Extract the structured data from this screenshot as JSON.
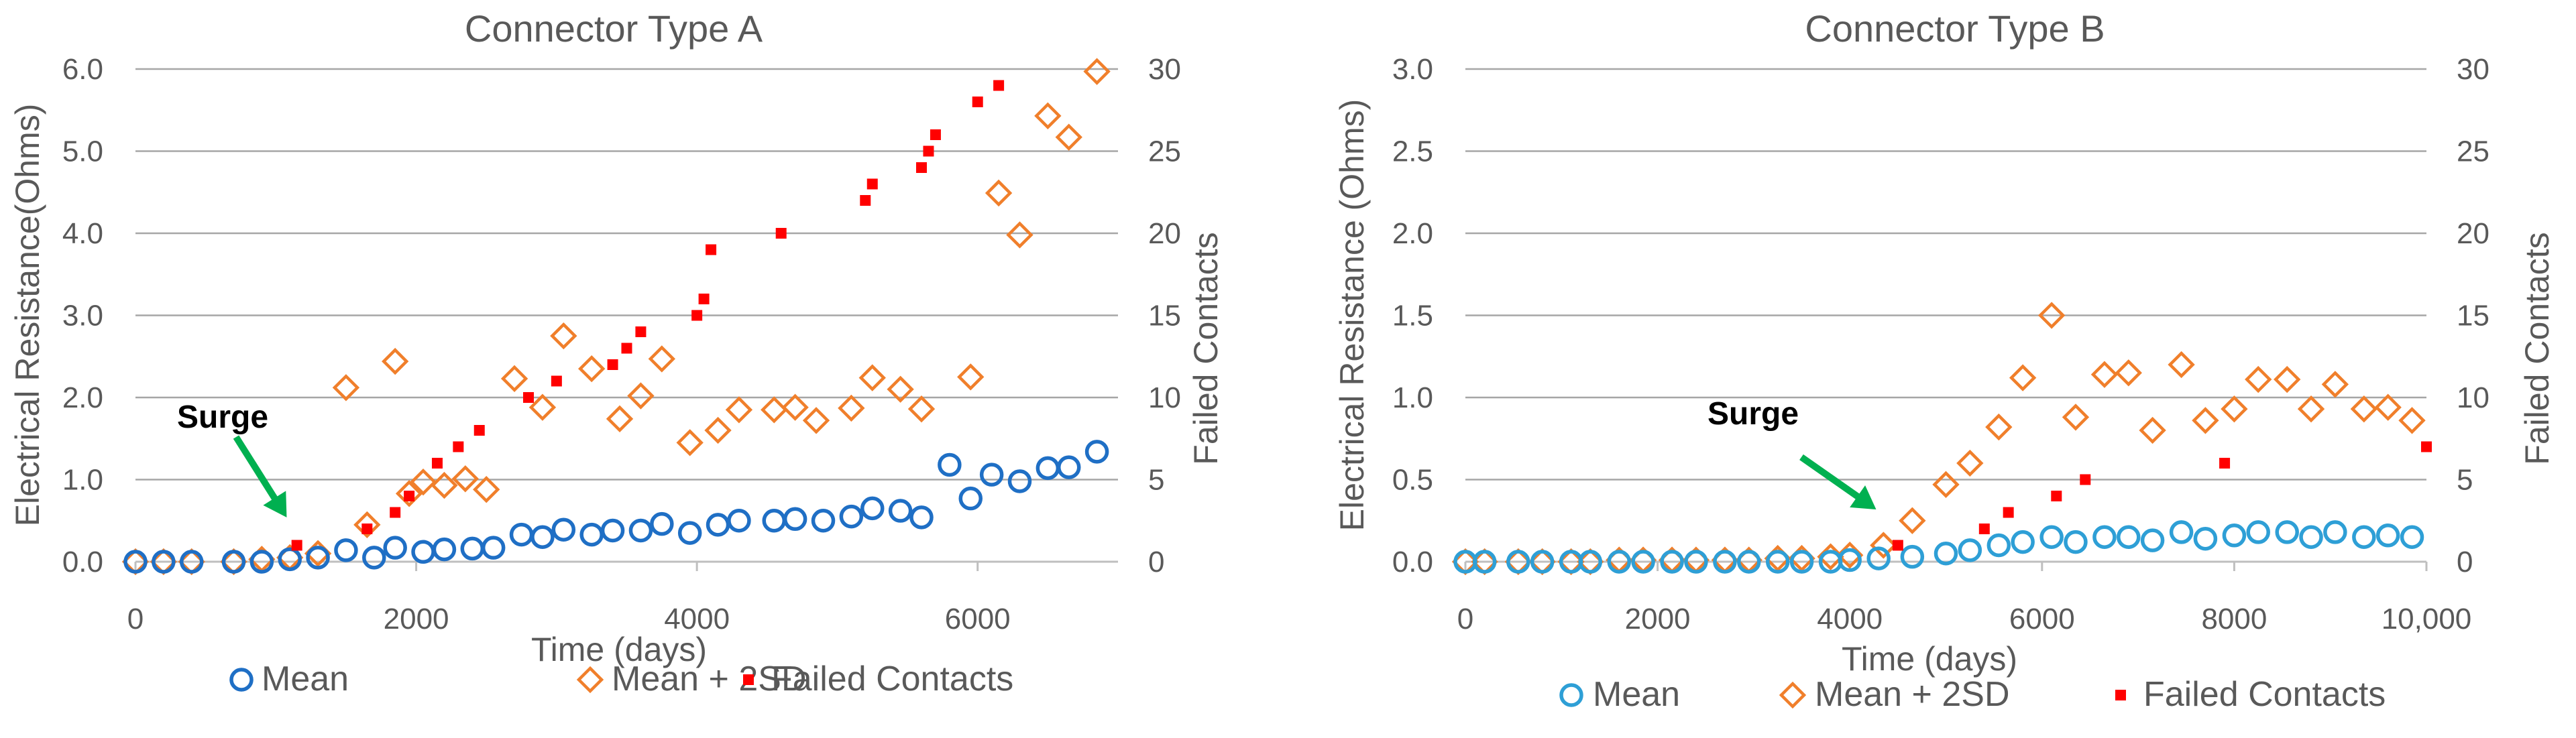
{
  "colors": {
    "mean_a": "#1F6FC5",
    "mean_b": "#2E9FD6",
    "mean_2sd": "#F07F2B",
    "failed": "#FF0000",
    "arrow": "#00B050",
    "grid": "#A6A6A6",
    "axis": "#BFBFBF",
    "text": "#595959"
  },
  "chart_data": [
    {
      "type": "scatter",
      "title": "Connector Type A",
      "xlabel": "Time (days)",
      "ylabel": "Electrical Resistance(Ohms)",
      "y2label": "Failed Contacts",
      "xlim": [
        0,
        7000
      ],
      "xticks": [
        0,
        2000,
        4000,
        6000
      ],
      "xtick_labels": [
        "0",
        "2000",
        "4000",
        "6000"
      ],
      "ylim": [
        0,
        6
      ],
      "yticks": [
        0,
        1,
        2,
        3,
        4,
        5,
        6
      ],
      "ytick_labels": [
        "0.0",
        "1.0",
        "2.0",
        "3.0",
        "4.0",
        "5.0",
        "6.0"
      ],
      "y2lim": [
        0,
        30
      ],
      "y2ticks": [
        0,
        5,
        10,
        15,
        20,
        25,
        30
      ],
      "y2tick_labels": [
        "0",
        "5",
        "10",
        "15",
        "20",
        "25",
        "30"
      ],
      "grid": true,
      "annotation": {
        "text": "Surge",
        "x": 1100,
        "y": 0.05
      },
      "legend_position": "bottom",
      "series": [
        {
          "name": "Mean",
          "marker": "circle",
          "axis": "left",
          "color_key": "mean_a",
          "points": [
            [
              0,
              0
            ],
            [
              200,
              0
            ],
            [
              400,
              0
            ],
            [
              700,
              0
            ],
            [
              900,
              0
            ],
            [
              1100,
              0.03
            ],
            [
              1300,
              0.05
            ],
            [
              1500,
              0.14
            ],
            [
              1700,
              0.05
            ],
            [
              1850,
              0.17
            ],
            [
              2050,
              0.12
            ],
            [
              2200,
              0.15
            ],
            [
              2400,
              0.16
            ],
            [
              2550,
              0.17
            ],
            [
              2750,
              0.33
            ],
            [
              2900,
              0.3
            ],
            [
              3050,
              0.39
            ],
            [
              3250,
              0.33
            ],
            [
              3400,
              0.38
            ],
            [
              3600,
              0.38
            ],
            [
              3750,
              0.46
            ],
            [
              3950,
              0.35
            ],
            [
              4150,
              0.45
            ],
            [
              4300,
              0.5
            ],
            [
              4550,
              0.5
            ],
            [
              4700,
              0.52
            ],
            [
              4900,
              0.5
            ],
            [
              5100,
              0.55
            ],
            [
              5250,
              0.65
            ],
            [
              5450,
              0.62
            ],
            [
              5600,
              0.54
            ],
            [
              5800,
              1.18
            ],
            [
              5950,
              0.77
            ],
            [
              6100,
              1.06
            ],
            [
              6300,
              0.98
            ],
            [
              6500,
              1.14
            ],
            [
              6650,
              1.15
            ],
            [
              6850,
              1.34
            ]
          ]
        },
        {
          "name": "Mean + 2SD",
          "marker": "diamond",
          "axis": "left",
          "color_key": "mean_2sd",
          "points": [
            [
              0,
              0
            ],
            [
              200,
              0
            ],
            [
              400,
              0
            ],
            [
              700,
              0
            ],
            [
              900,
              0.03
            ],
            [
              1100,
              0.05
            ],
            [
              1300,
              0.1
            ],
            [
              1500,
              2.12
            ],
            [
              1650,
              0.45
            ],
            [
              1850,
              2.44
            ],
            [
              1950,
              0.83
            ],
            [
              2050,
              0.97
            ],
            [
              2200,
              0.93
            ],
            [
              2350,
              1.01
            ],
            [
              2500,
              0.88
            ],
            [
              2700,
              2.23
            ],
            [
              2900,
              1.88
            ],
            [
              3050,
              2.75
            ],
            [
              3250,
              2.35
            ],
            [
              3450,
              1.74
            ],
            [
              3600,
              2.02
            ],
            [
              3750,
              2.47
            ],
            [
              3950,
              1.45
            ],
            [
              4150,
              1.6
            ],
            [
              4300,
              1.85
            ],
            [
              4550,
              1.85
            ],
            [
              4700,
              1.88
            ],
            [
              4850,
              1.72
            ],
            [
              5100,
              1.87
            ],
            [
              5250,
              2.24
            ],
            [
              5450,
              2.1
            ],
            [
              5600,
              1.86
            ],
            [
              5950,
              2.25
            ],
            [
              6150,
              4.49
            ],
            [
              6300,
              3.98
            ],
            [
              6500,
              5.43
            ],
            [
              6650,
              5.17
            ],
            [
              6850,
              5.97
            ]
          ]
        },
        {
          "name": "Failed Contacts",
          "marker": "square",
          "axis": "right",
          "color_key": "failed",
          "points": [
            [
              1150,
              1
            ],
            [
              1650,
              2
            ],
            [
              1850,
              3
            ],
            [
              1950,
              4
            ],
            [
              2150,
              6
            ],
            [
              2300,
              7
            ],
            [
              2450,
              8
            ],
            [
              2800,
              10
            ],
            [
              3000,
              11
            ],
            [
              3400,
              12
            ],
            [
              3500,
              13
            ],
            [
              3600,
              14
            ],
            [
              4000,
              15
            ],
            [
              4050,
              16
            ],
            [
              4100,
              19
            ],
            [
              4600,
              20
            ],
            [
              5200,
              22
            ],
            [
              5250,
              23
            ],
            [
              5600,
              24
            ],
            [
              5650,
              25
            ],
            [
              5700,
              26
            ],
            [
              6000,
              28
            ],
            [
              6150,
              29
            ]
          ]
        }
      ]
    },
    {
      "type": "scatter",
      "title": "Connector Type B",
      "xlabel": "Time (days)",
      "ylabel": "Electrical Resistance (Ohms)",
      "y2label": "Failed Contacts",
      "xlim": [
        0,
        10000
      ],
      "xticks": [
        0,
        2000,
        4000,
        6000,
        8000,
        10000
      ],
      "xtick_labels": [
        "0",
        "2000",
        "4000",
        "6000",
        "8000",
        "10,000"
      ],
      "ylim": [
        0,
        3
      ],
      "yticks": [
        0,
        0.5,
        1,
        1.5,
        2,
        2.5,
        3
      ],
      "ytick_labels": [
        "0.0",
        "0.5",
        "1.0",
        "1.5",
        "2.0",
        "2.5",
        "3.0"
      ],
      "y2lim": [
        0,
        30
      ],
      "y2ticks": [
        0,
        5,
        10,
        15,
        20,
        25,
        30
      ],
      "y2tick_labels": [
        "0",
        "5",
        "10",
        "15",
        "20",
        "25",
        "30"
      ],
      "grid": true,
      "annotation": {
        "text": "Surge",
        "x": 4300,
        "y": 0.07
      },
      "legend_position": "bottom",
      "series": [
        {
          "name": "Mean",
          "marker": "circle",
          "axis": "left",
          "color_key": "mean_b",
          "points": [
            [
              0,
              0
            ],
            [
              200,
              0
            ],
            [
              550,
              0
            ],
            [
              800,
              0
            ],
            [
              1100,
              0
            ],
            [
              1300,
              0
            ],
            [
              1600,
              0
            ],
            [
              1850,
              0
            ],
            [
              2150,
              0
            ],
            [
              2400,
              0
            ],
            [
              2700,
              0
            ],
            [
              2950,
              0
            ],
            [
              3250,
              0
            ],
            [
              3500,
              0
            ],
            [
              3800,
              0
            ],
            [
              4000,
              0.01
            ],
            [
              4300,
              0.02
            ],
            [
              4650,
              0.03
            ],
            [
              5000,
              0.05
            ],
            [
              5250,
              0.07
            ],
            [
              5550,
              0.1
            ],
            [
              5800,
              0.12
            ],
            [
              6100,
              0.15
            ],
            [
              6350,
              0.12
            ],
            [
              6650,
              0.15
            ],
            [
              6900,
              0.15
            ],
            [
              7150,
              0.13
            ],
            [
              7450,
              0.18
            ],
            [
              7700,
              0.14
            ],
            [
              8000,
              0.16
            ],
            [
              8250,
              0.18
            ],
            [
              8550,
              0.18
            ],
            [
              8800,
              0.15
            ],
            [
              9050,
              0.18
            ],
            [
              9350,
              0.15
            ],
            [
              9600,
              0.16
            ],
            [
              9850,
              0.15
            ]
          ]
        },
        {
          "name": "Mean + 2SD",
          "marker": "diamond",
          "axis": "left",
          "color_key": "mean_2sd",
          "points": [
            [
              0,
              0
            ],
            [
              200,
              0
            ],
            [
              550,
              0
            ],
            [
              800,
              0
            ],
            [
              1100,
              0
            ],
            [
              1300,
              0
            ],
            [
              1600,
              0.01
            ],
            [
              1850,
              0.01
            ],
            [
              2150,
              0.01
            ],
            [
              2400,
              0.01
            ],
            [
              2700,
              0.01
            ],
            [
              2950,
              0.01
            ],
            [
              3250,
              0.02
            ],
            [
              3500,
              0.02
            ],
            [
              3800,
              0.03
            ],
            [
              4000,
              0.04
            ],
            [
              4350,
              0.1
            ],
            [
              4650,
              0.25
            ],
            [
              5000,
              0.47
            ],
            [
              5250,
              0.6
            ],
            [
              5550,
              0.82
            ],
            [
              5800,
              1.12
            ],
            [
              6100,
              1.5
            ],
            [
              6350,
              0.88
            ],
            [
              6650,
              1.14
            ],
            [
              6900,
              1.15
            ],
            [
              7150,
              0.8
            ],
            [
              7450,
              1.2
            ],
            [
              7700,
              0.86
            ],
            [
              8000,
              0.93
            ],
            [
              8250,
              1.11
            ],
            [
              8550,
              1.11
            ],
            [
              8800,
              0.93
            ],
            [
              9050,
              1.08
            ],
            [
              9350,
              0.93
            ],
            [
              9600,
              0.94
            ],
            [
              9850,
              0.86
            ]
          ]
        },
        {
          "name": "Failed Contacts",
          "marker": "square",
          "axis": "right",
          "color_key": "failed",
          "points": [
            [
              4500,
              1
            ],
            [
              5400,
              2
            ],
            [
              5650,
              3
            ],
            [
              6150,
              4
            ],
            [
              6450,
              5
            ],
            [
              7900,
              6
            ],
            [
              10000,
              7
            ]
          ]
        }
      ]
    }
  ]
}
